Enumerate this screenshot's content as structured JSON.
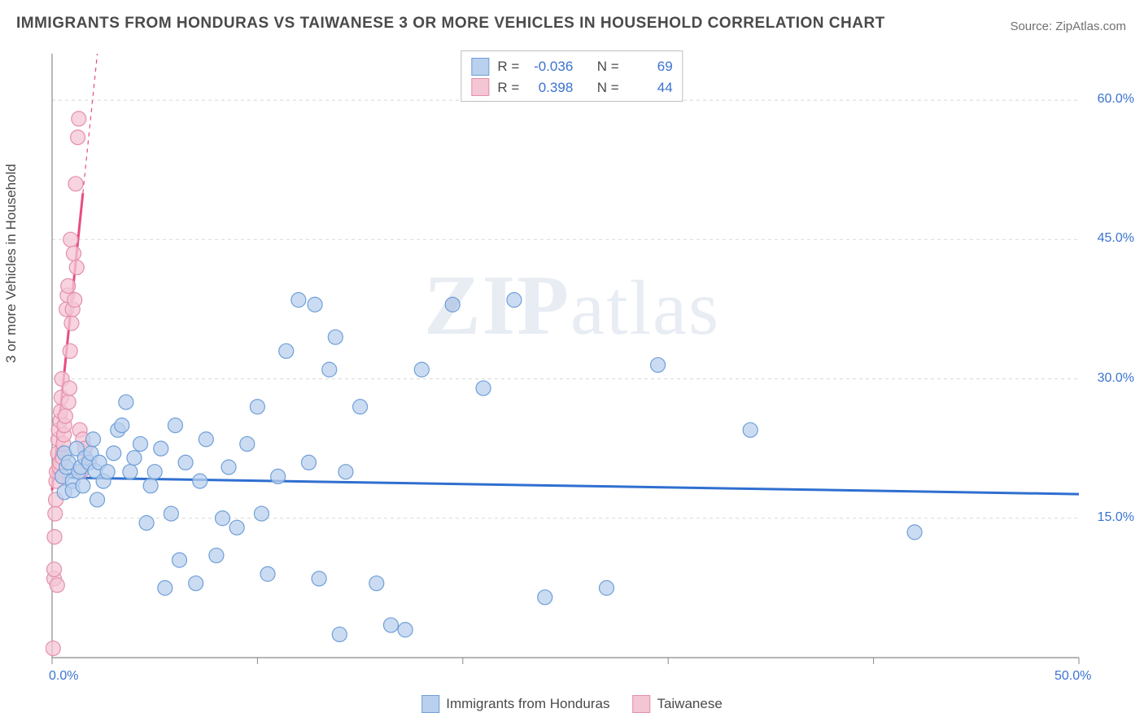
{
  "title": "IMMIGRANTS FROM HONDURAS VS TAIWANESE 3 OR MORE VEHICLES IN HOUSEHOLD CORRELATION CHART",
  "source_label": "Source: ZipAtlas.com",
  "ylabel": "3 or more Vehicles in Household",
  "watermark_a": "ZIP",
  "watermark_b": "atlas",
  "chart": {
    "type": "scatter",
    "xlim": [
      0,
      50
    ],
    "ylim": [
      0,
      65
    ],
    "x_ticks": [
      0,
      10,
      20,
      30,
      40,
      50
    ],
    "x_tick_labels": [
      "0.0%",
      "",
      "",
      "",
      "",
      "50.0%"
    ],
    "y_gridlines": [
      15,
      30,
      45,
      60
    ],
    "y_tick_labels": [
      "15.0%",
      "30.0%",
      "45.0%",
      "60.0%"
    ],
    "grid_color": "#d8d8d8",
    "axis_color": "#8a8a8a",
    "background": "#ffffff",
    "marker_radius": 9,
    "marker_stroke_width": 1.2,
    "series": [
      {
        "name": "Immigrants from Honduras",
        "color_fill": "#b9d0ee",
        "color_stroke": "#6f9fd8",
        "trend_color": "#2f6fd0",
        "trend_width": 3,
        "r": "-0.036",
        "n": "69",
        "trend": {
          "y0": 19.4,
          "y50": 17.6
        },
        "points": [
          [
            0.5,
            19.5
          ],
          [
            0.6,
            17.8
          ],
          [
            0.6,
            22.0
          ],
          [
            0.7,
            20.5
          ],
          [
            0.8,
            21.0
          ],
          [
            1.0,
            19.0
          ],
          [
            1.0,
            18.0
          ],
          [
            1.2,
            22.5
          ],
          [
            1.3,
            20.0
          ],
          [
            1.4,
            20.5
          ],
          [
            1.5,
            18.5
          ],
          [
            1.6,
            21.5
          ],
          [
            1.8,
            21.0
          ],
          [
            1.9,
            22.0
          ],
          [
            2.0,
            23.5
          ],
          [
            2.1,
            20.1
          ],
          [
            2.2,
            17.0
          ],
          [
            2.3,
            21.0
          ],
          [
            2.5,
            19.0
          ],
          [
            2.7,
            20.0
          ],
          [
            3.0,
            22.0
          ],
          [
            3.2,
            24.5
          ],
          [
            3.4,
            25.0
          ],
          [
            3.6,
            27.5
          ],
          [
            3.8,
            20.0
          ],
          [
            4.0,
            21.5
          ],
          [
            4.3,
            23.0
          ],
          [
            4.6,
            14.5
          ],
          [
            4.8,
            18.5
          ],
          [
            5.0,
            20.0
          ],
          [
            5.3,
            22.5
          ],
          [
            5.5,
            7.5
          ],
          [
            5.8,
            15.5
          ],
          [
            6.0,
            25.0
          ],
          [
            6.2,
            10.5
          ],
          [
            6.5,
            21.0
          ],
          [
            7.0,
            8.0
          ],
          [
            7.2,
            19.0
          ],
          [
            7.5,
            23.5
          ],
          [
            8.0,
            11.0
          ],
          [
            8.3,
            15.0
          ],
          [
            8.6,
            20.5
          ],
          [
            9.0,
            14.0
          ],
          [
            9.5,
            23.0
          ],
          [
            10.0,
            27.0
          ],
          [
            10.2,
            15.5
          ],
          [
            10.5,
            9.0
          ],
          [
            11.0,
            19.5
          ],
          [
            11.4,
            33.0
          ],
          [
            12.0,
            38.5
          ],
          [
            12.5,
            21.0
          ],
          [
            12.8,
            38.0
          ],
          [
            13.0,
            8.5
          ],
          [
            13.5,
            31.0
          ],
          [
            13.8,
            34.5
          ],
          [
            14.0,
            2.5
          ],
          [
            14.3,
            20.0
          ],
          [
            15.0,
            27.0
          ],
          [
            15.8,
            8.0
          ],
          [
            16.5,
            3.5
          ],
          [
            17.2,
            3.0
          ],
          [
            18.0,
            31.0
          ],
          [
            19.5,
            38.0
          ],
          [
            21.0,
            29.0
          ],
          [
            22.5,
            38.5
          ],
          [
            24.0,
            6.5
          ],
          [
            27.0,
            7.5
          ],
          [
            29.5,
            31.5
          ],
          [
            34.0,
            24.5
          ],
          [
            42.0,
            13.5
          ]
        ]
      },
      {
        "name": "Taiwanese",
        "color_fill": "#f4c6d4",
        "color_stroke": "#e38fab",
        "trend_color": "#e94b82",
        "trend_width": 3,
        "r": "0.398",
        "n": "44",
        "trend": {
          "y_at_x0": 18.0,
          "y_at_x1p5": 50.0
        },
        "trend_dashed_extend": true,
        "points": [
          [
            0.05,
            1.0
          ],
          [
            0.1,
            8.5
          ],
          [
            0.1,
            9.5
          ],
          [
            0.12,
            13.0
          ],
          [
            0.15,
            15.5
          ],
          [
            0.18,
            17.0
          ],
          [
            0.2,
            19.0
          ],
          [
            0.22,
            20.0
          ],
          [
            0.25,
            7.8
          ],
          [
            0.28,
            22.0
          ],
          [
            0.3,
            23.5
          ],
          [
            0.32,
            24.5
          ],
          [
            0.35,
            20.5
          ],
          [
            0.38,
            21.0
          ],
          [
            0.4,
            25.5
          ],
          [
            0.42,
            26.5
          ],
          [
            0.45,
            28.0
          ],
          [
            0.48,
            30.0
          ],
          [
            0.5,
            19.5
          ],
          [
            0.52,
            21.5
          ],
          [
            0.55,
            23.0
          ],
          [
            0.58,
            24.0
          ],
          [
            0.6,
            25.0
          ],
          [
            0.65,
            26.0
          ],
          [
            0.7,
            37.5
          ],
          [
            0.75,
            39.0
          ],
          [
            0.78,
            40.0
          ],
          [
            0.8,
            27.5
          ],
          [
            0.85,
            29.0
          ],
          [
            0.88,
            33.0
          ],
          [
            0.9,
            45.0
          ],
          [
            0.95,
            36.0
          ],
          [
            1.0,
            37.5
          ],
          [
            1.05,
            43.5
          ],
          [
            1.1,
            38.5
          ],
          [
            1.15,
            51.0
          ],
          [
            1.2,
            42.0
          ],
          [
            1.25,
            56.0
          ],
          [
            1.3,
            58.0
          ],
          [
            1.35,
            24.5
          ],
          [
            1.4,
            20.0
          ],
          [
            1.5,
            23.5
          ],
          [
            1.6,
            22.5
          ],
          [
            1.7,
            21.0
          ]
        ]
      }
    ]
  },
  "legend": {
    "series1_label": "Immigrants from Honduras",
    "series2_label": "Taiwanese"
  },
  "stats_box": {
    "r_label": "R =",
    "n_label": "N ="
  }
}
